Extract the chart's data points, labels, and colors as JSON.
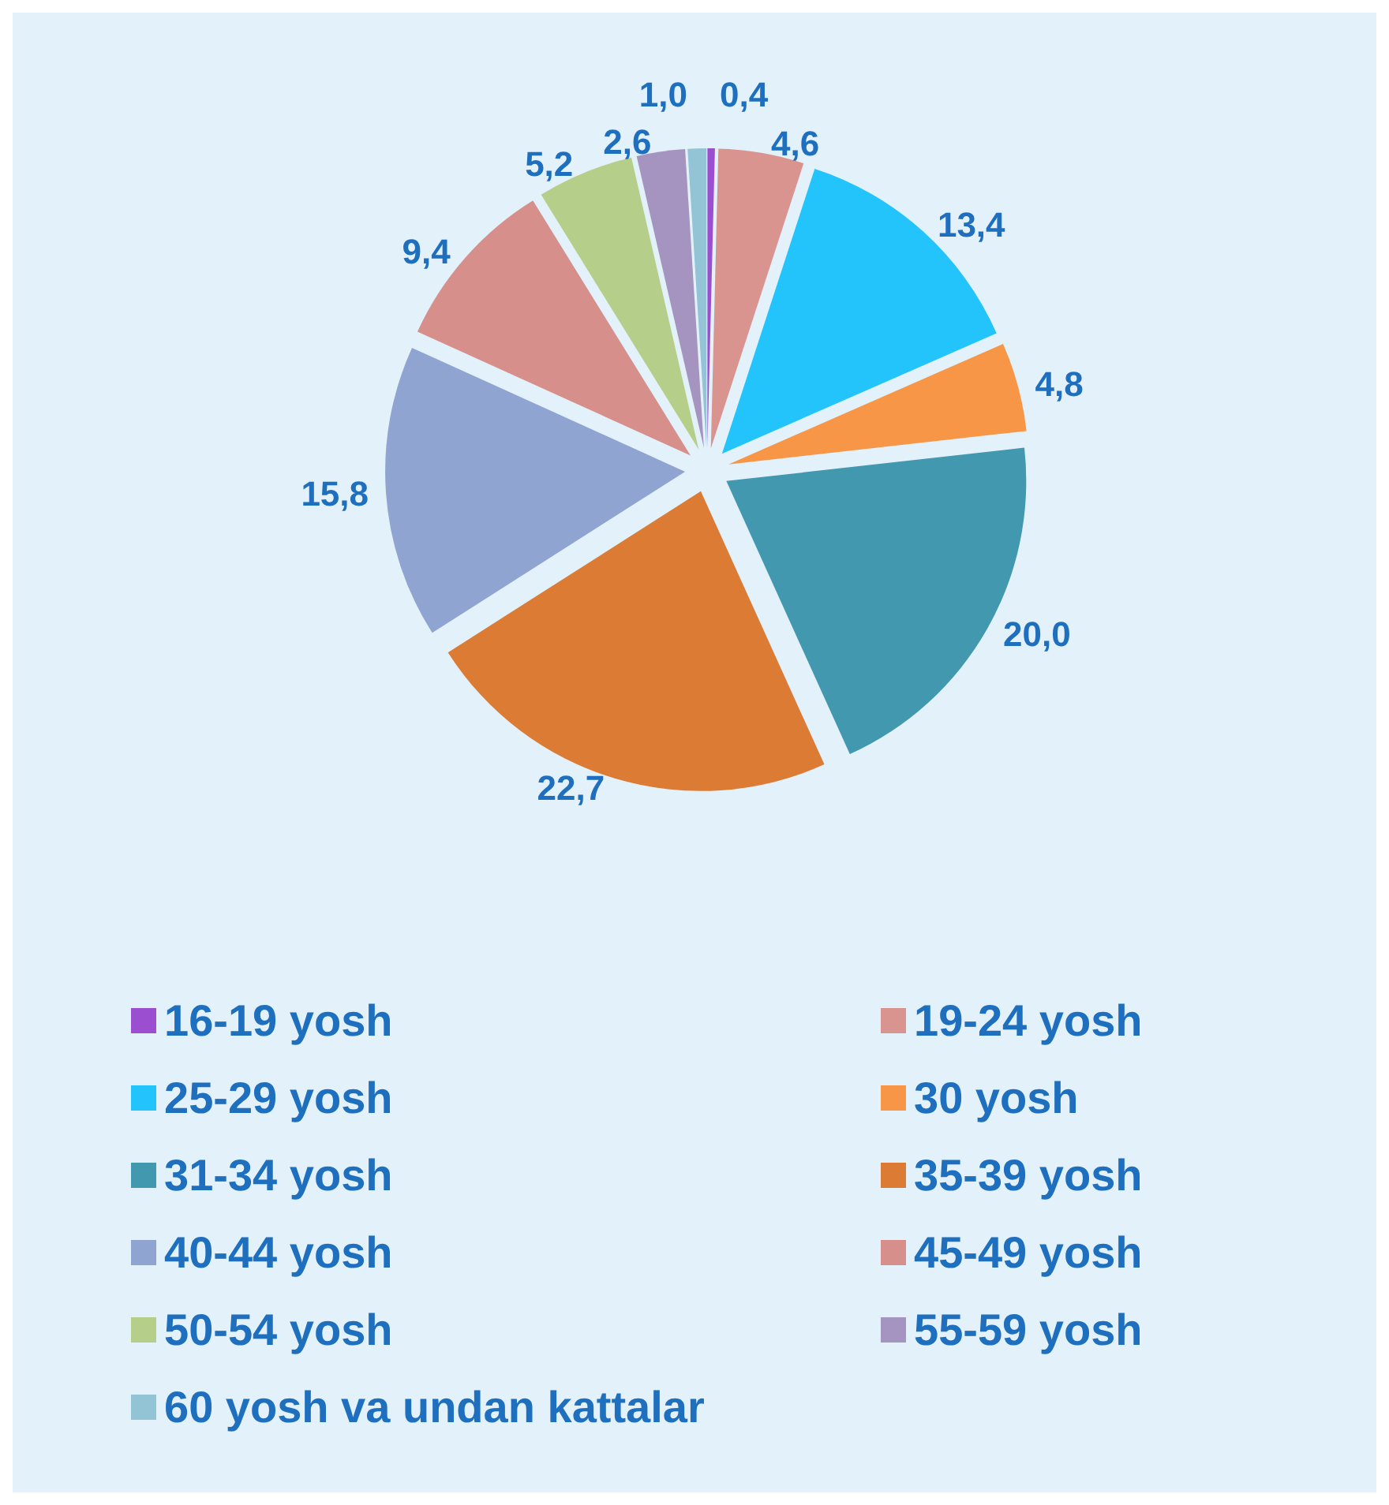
{
  "chart_data": {
    "type": "pie",
    "categories": [
      "16-19 yosh",
      "19-24 yosh",
      "25-29 yosh",
      "30 yosh",
      "31-34 yosh",
      "35-39 yosh",
      "40-44 yosh",
      "45-49 yosh",
      "50-54 yosh",
      "55-59 yosh",
      "60 yosh va undan kattalar"
    ],
    "values": [
      0.4,
      4.6,
      13.4,
      4.8,
      20.0,
      22.7,
      15.8,
      9.4,
      5.2,
      2.6,
      1.0
    ],
    "value_labels": [
      "0,4",
      "4,6",
      "13,4",
      "4,8",
      "20,0",
      "22,7",
      "15,8",
      "9,4",
      "5,2",
      "2,6",
      "1,0"
    ],
    "colors": [
      "#9b4fd0",
      "#d99490",
      "#22c4fb",
      "#f79646",
      "#4198af",
      "#dc7c34",
      "#8fa4d0",
      "#d68f8a",
      "#b5cf8b",
      "#a594c0",
      "#93c4d6"
    ],
    "legend": "bottom"
  }
}
